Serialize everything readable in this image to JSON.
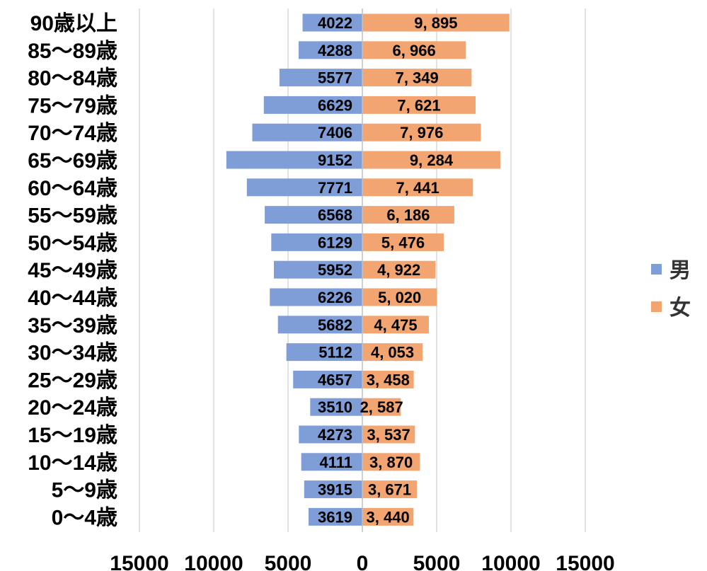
{
  "chart_data": {
    "type": "bar",
    "orientation": "horizontal",
    "layout": "population-pyramid",
    "categories": [
      "90歳以上",
      "85～89歳",
      "80～84歳",
      "75～79歳",
      "70～74歳",
      "65～69歳",
      "60～64歳",
      "55～59歳",
      "50～54歳",
      "45～49歳",
      "40～44歳",
      "35～39歳",
      "30～34歳",
      "25～29歳",
      "20～24歳",
      "15～19歳",
      "10～14歳",
      "5～9歳",
      "0～4歳"
    ],
    "series": [
      {
        "name": "男",
        "side": "left",
        "color": "#7f9ed8",
        "values": [
          4022,
          4288,
          5577,
          6629,
          7406,
          9152,
          7771,
          6568,
          6129,
          5952,
          6226,
          5682,
          5112,
          4657,
          3510,
          4273,
          4111,
          3915,
          3619
        ],
        "labels": [
          "4022",
          "4288",
          "5577",
          "6629",
          "7406",
          "9152",
          "7771",
          "6568",
          "6129",
          "5952",
          "6226",
          "5682",
          "5112",
          "4657",
          "3510",
          "4273",
          "4111",
          "3915",
          "3619"
        ]
      },
      {
        "name": "女",
        "side": "right",
        "color": "#f2a571",
        "values": [
          9895,
          6966,
          7349,
          7621,
          7976,
          9284,
          7441,
          6186,
          5476,
          4922,
          5020,
          4475,
          4053,
          3458,
          2587,
          3537,
          3870,
          3671,
          3440
        ],
        "labels": [
          "9, 895",
          "6, 966",
          "7, 349",
          "7, 621",
          "7, 976",
          "9, 284",
          "7, 441",
          "6, 186",
          "5, 476",
          "4, 922",
          "5, 020",
          "4, 475",
          "4, 053",
          "3, 458",
          "2, 587",
          "3, 537",
          "3, 870",
          "3, 671",
          "3, 440"
        ]
      }
    ],
    "xlim": [
      -15000,
      15000
    ],
    "xticks": [
      -15000,
      -10000,
      -5000,
      0,
      5000,
      10000,
      15000
    ],
    "xtick_labels": [
      "15000",
      "10000",
      "5000",
      "0",
      "5000",
      "10000",
      "15000"
    ],
    "grid": true,
    "legend": "right"
  }
}
